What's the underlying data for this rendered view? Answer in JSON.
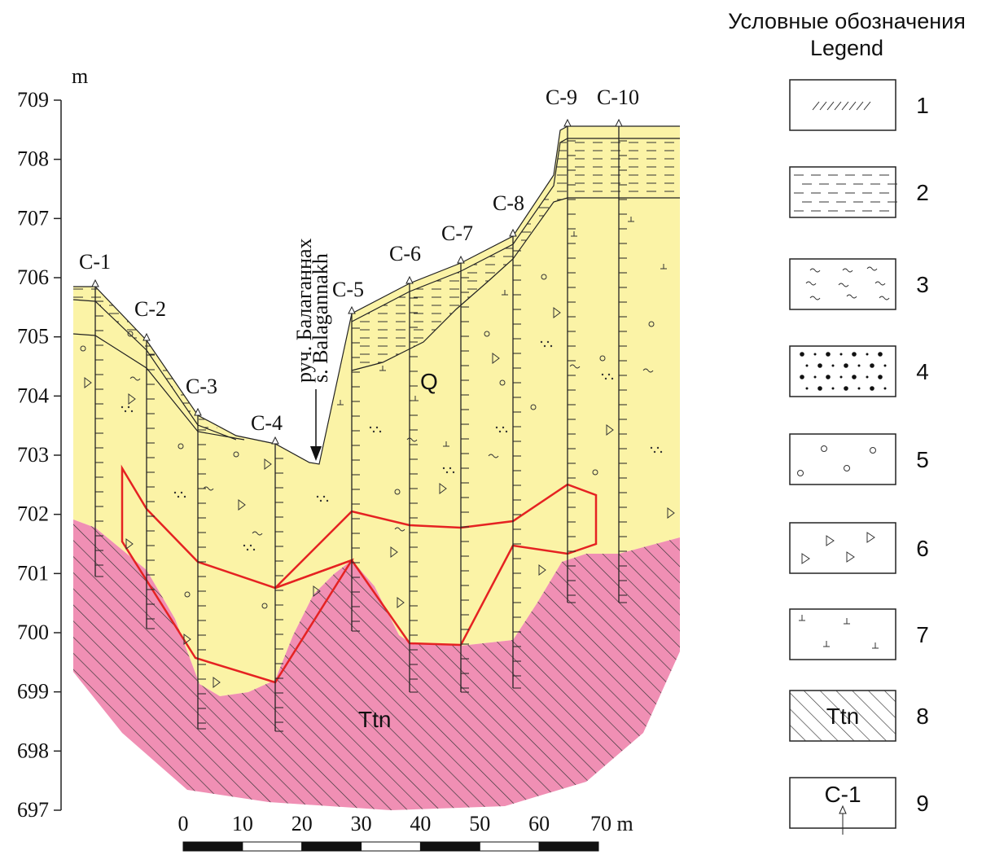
{
  "elevation_axis": {
    "unit": "m",
    "ticks": [
      709,
      708,
      707,
      706,
      705,
      704,
      703,
      702,
      701,
      700,
      699,
      698,
      697
    ]
  },
  "boreholes": [
    "C-1",
    "C-2",
    "C-3",
    "C-4",
    "C-5",
    "C-6",
    "C-7",
    "C-8",
    "C-9",
    "C-10"
  ],
  "stream": {
    "ru": "руч. Балаганнах",
    "en": "s. Balagannakh"
  },
  "units": {
    "quaternary": "Q",
    "bedrock": "Ttn"
  },
  "scale_bar": {
    "labels": [
      "0",
      "10",
      "20",
      "30",
      "40",
      "50",
      "60",
      "70 m"
    ]
  },
  "legend": {
    "title_ru": "Условные обозначения",
    "title_en": "Legend",
    "items": [
      "1",
      "2",
      "3",
      "4",
      "5",
      "6",
      "7",
      "8",
      "9"
    ],
    "bedrock_sample": "Ttn",
    "borehole_sample": "C-1"
  }
}
